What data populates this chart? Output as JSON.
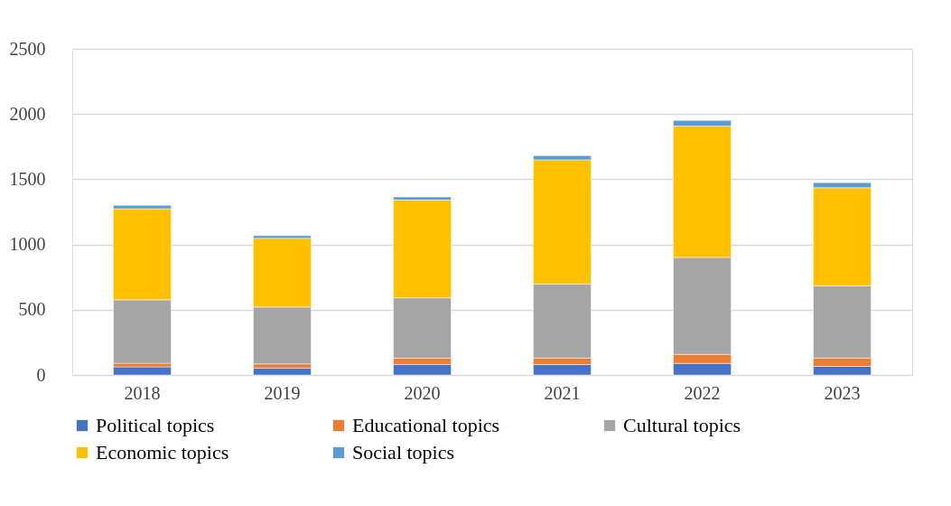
{
  "chart_data": {
    "type": "bar",
    "stacked": true,
    "categories": [
      "2018",
      "2019",
      "2020",
      "2021",
      "2022",
      "2023"
    ],
    "series": [
      {
        "name": "Political topics",
        "color": "#4472c4",
        "values": [
          62,
          53,
          81,
          80,
          89,
          66
        ]
      },
      {
        "name": "Educational topics",
        "color": "#ed7d31",
        "values": [
          28,
          32,
          48,
          50,
          69,
          64
        ]
      },
      {
        "name": "Cultural topics",
        "color": "#a5a5a5",
        "values": [
          486,
          436,
          462,
          568,
          743,
          554
        ]
      },
      {
        "name": "Economic topics",
        "color": "#ffc000",
        "values": [
          698,
          527,
          750,
          951,
          1007,
          751
        ]
      },
      {
        "name": "Social topics",
        "color": "#5b9bd5",
        "values": [
          26,
          20,
          23,
          32,
          43,
          39
        ]
      }
    ],
    "ylim": [
      0,
      2500
    ],
    "yticks": [
      0,
      500,
      1000,
      1500,
      2000,
      2500
    ],
    "grid": "y",
    "legend": "bottom"
  }
}
